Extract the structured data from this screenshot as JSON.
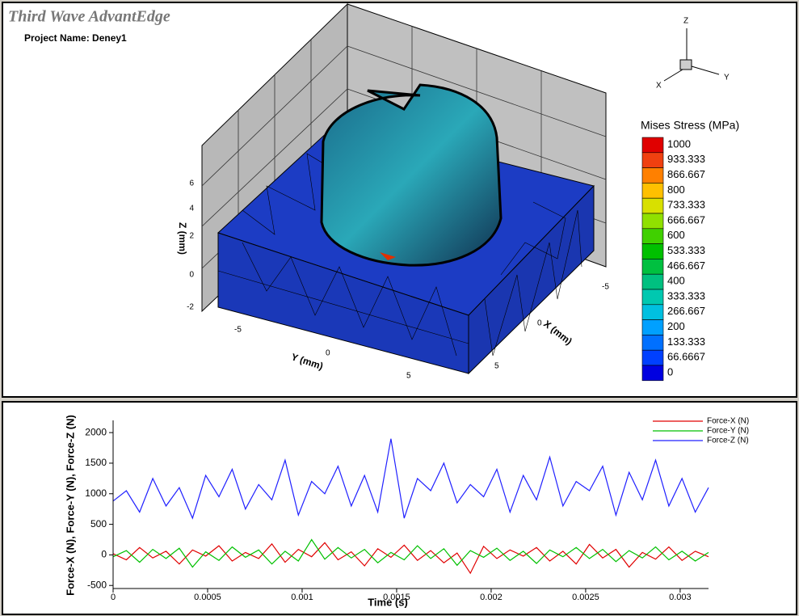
{
  "app_title": "Third Wave AdvantEdge",
  "project_name": "Project Name: Deney1",
  "view_3d": {
    "triad": {
      "z": "Z",
      "y": "Y",
      "x": "X"
    },
    "z_axis": {
      "label": "Z (mm)",
      "ticks": [
        6,
        4,
        2,
        0,
        -2
      ]
    },
    "y_axis": {
      "label": "Y (mm)",
      "ticks": [
        -5,
        0,
        5
      ]
    },
    "x_axis": {
      "label": "X (mm)",
      "ticks": [
        -5,
        0,
        5
      ]
    },
    "legend": {
      "title": "Mises Stress (MPa)",
      "levels": [
        {
          "value": 1000,
          "color": "#e00000"
        },
        {
          "value": 933.333,
          "color": "#f04010"
        },
        {
          "value": 866.667,
          "color": "#ff8000"
        },
        {
          "value": 800,
          "color": "#ffc000"
        },
        {
          "value": 733.333,
          "color": "#d8e000"
        },
        {
          "value": 666.667,
          "color": "#90e000"
        },
        {
          "value": 600,
          "color": "#40d000"
        },
        {
          "value": 533.333,
          "color": "#00c000"
        },
        {
          "value": 466.667,
          "color": "#00c040"
        },
        {
          "value": 400,
          "color": "#00c080"
        },
        {
          "value": 333.333,
          "color": "#00c8b0"
        },
        {
          "value": 266.667,
          "color": "#00c0e0"
        },
        {
          "value": 200,
          "color": "#00a0ff"
        },
        {
          "value": 133.333,
          "color": "#0070ff"
        },
        {
          "value": 66.6667,
          "color": "#0040ff"
        },
        {
          "value": 0,
          "color": "#0000e0"
        }
      ]
    }
  },
  "chart_data": {
    "type": "line",
    "x_label": "Time (s)",
    "y_label": "Force-X (N), Force-Y (N), Force-Z (N)",
    "x": [
      0,
      7e-05,
      0.00014,
      0.00021,
      0.00028,
      0.00035,
      0.00042,
      0.00049,
      0.00056,
      0.00063,
      0.0007,
      0.00077,
      0.00084,
      0.00091,
      0.00098,
      0.00105,
      0.00112,
      0.00119,
      0.00126,
      0.00133,
      0.0014,
      0.00147,
      0.00154,
      0.00161,
      0.00168,
      0.00175,
      0.00182,
      0.00189,
      0.00196,
      0.00203,
      0.0021,
      0.00217,
      0.00224,
      0.00231,
      0.00238,
      0.00245,
      0.00252,
      0.00259,
      0.00266,
      0.00273,
      0.0028,
      0.00287,
      0.00294,
      0.00301,
      0.00308,
      0.00315
    ],
    "series": [
      {
        "name": "Force-Z (N)",
        "color": "#2020ff",
        "values": [
          880,
          1050,
          700,
          1250,
          800,
          1100,
          600,
          1300,
          950,
          1400,
          750,
          1150,
          900,
          1550,
          650,
          1200,
          1000,
          1450,
          800,
          1300,
          700,
          1900,
          600,
          1250,
          1050,
          1500,
          850,
          1150,
          950,
          1400,
          700,
          1300,
          900,
          1600,
          800,
          1200,
          1050,
          1450,
          650,
          1350,
          900,
          1550,
          800,
          1250,
          700,
          1100
        ]
      },
      {
        "name": "Force-X (N)",
        "color": "#e00000",
        "values": [
          20,
          -80,
          120,
          -50,
          60,
          -150,
          80,
          -20,
          150,
          -100,
          40,
          -60,
          180,
          -120,
          90,
          -30,
          200,
          -80,
          50,
          -180,
          100,
          -40,
          160,
          -90,
          70,
          -130,
          30,
          -300,
          140,
          -60,
          80,
          -20,
          120,
          -100,
          60,
          -150,
          170,
          -50,
          90,
          -200,
          40,
          -70,
          130,
          -90,
          60,
          -30
        ]
      },
      {
        "name": "Force-Y (N)",
        "color": "#00c000",
        "values": [
          -30,
          70,
          -120,
          90,
          -60,
          110,
          -200,
          50,
          -90,
          130,
          -40,
          80,
          -150,
          60,
          -100,
          250,
          -70,
          120,
          -50,
          90,
          -130,
          40,
          -80,
          150,
          -60,
          100,
          -170,
          70,
          -40,
          110,
          -90,
          60,
          -140,
          80,
          -30,
          120,
          -60,
          90,
          -110,
          70,
          -50,
          130,
          -80,
          60,
          -100,
          40
        ]
      }
    ],
    "legend_order": [
      1,
      2,
      0
    ],
    "xlim": [
      0,
      0.00315
    ],
    "ylim": [
      -550,
      2200
    ],
    "xticks": [
      0,
      0.0005,
      0.001,
      0.0015,
      0.002,
      0.0025,
      0.003
    ],
    "yticks": [
      -500,
      0,
      500,
      1000,
      1500,
      2000
    ]
  }
}
